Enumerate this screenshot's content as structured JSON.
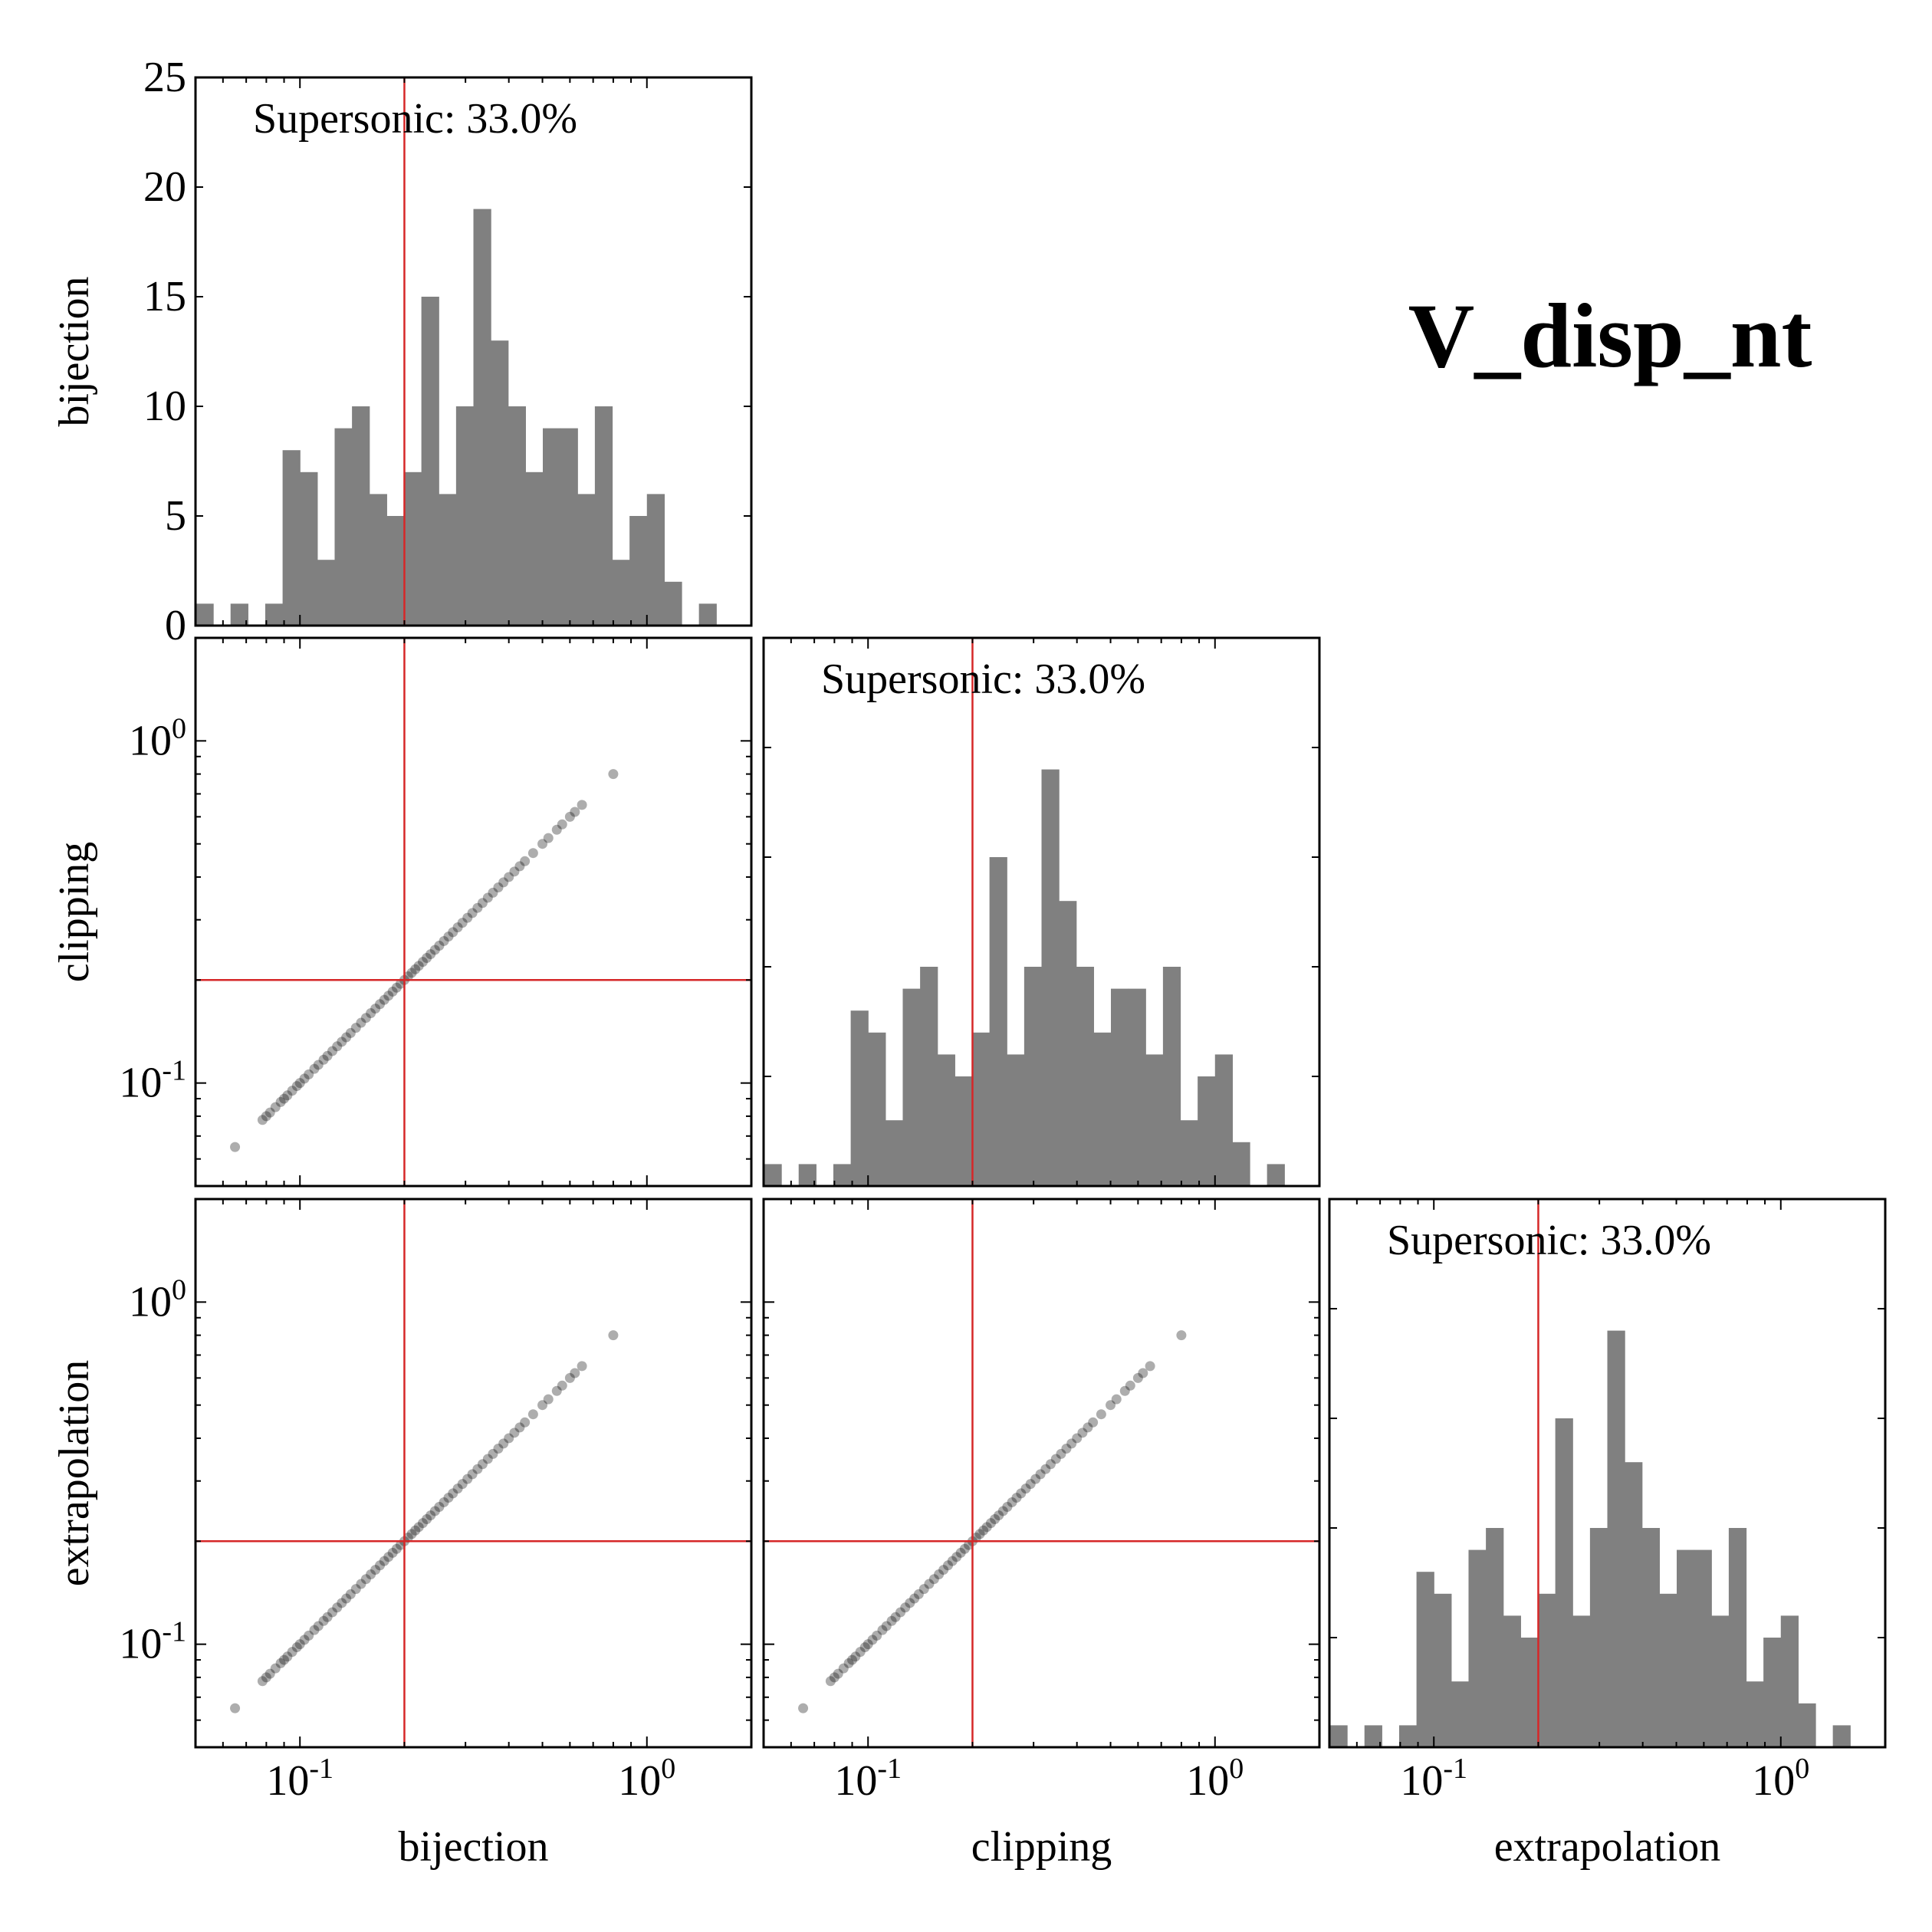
{
  "figure_title": "V_disp_nt",
  "chart_data": {
    "type": "corner",
    "variables": [
      "bijection",
      "clipping",
      "extrapolation"
    ],
    "scale": "log",
    "axis_range": [
      0.05,
      2.0
    ],
    "tick_labels": [
      {
        "base": "10",
        "exp": "-1",
        "value": 0.1
      },
      {
        "base": "10",
        "exp": "0",
        "value": 1.0
      }
    ],
    "threshold": 0.2,
    "threshold_color": "#d62728",
    "hist_color": "#808080",
    "scatter_color": "#000000",
    "hist_y_ticks": [
      0,
      5,
      10,
      15,
      20,
      25
    ],
    "hist_ylim": [
      0,
      25
    ],
    "annotation": "Supersonic: 33.0%",
    "histogram": {
      "bin_edges_log10": [
        -1.301,
        -1.25,
        -1.2,
        -1.15,
        -1.1,
        -1.05,
        -1.0,
        -0.95,
        -0.9,
        -0.85,
        -0.8,
        -0.75,
        -0.7,
        -0.65,
        -0.6,
        -0.55,
        -0.5,
        -0.45,
        -0.4,
        -0.35,
        -0.3,
        -0.25,
        -0.2,
        -0.15,
        -0.1,
        -0.05,
        0.0,
        0.05,
        0.1,
        0.15,
        0.2,
        0.25,
        0.3
      ],
      "counts": [
        1,
        0,
        1,
        0,
        1,
        8,
        7,
        3,
        9,
        10,
        6,
        5,
        7,
        15,
        6,
        10,
        19,
        13,
        10,
        7,
        9,
        9,
        6,
        10,
        3,
        5,
        6,
        2,
        0,
        1,
        0,
        0
      ]
    },
    "scatter_points": [
      0.065,
      0.078,
      0.08,
      0.082,
      0.085,
      0.088,
      0.09,
      0.092,
      0.095,
      0.098,
      0.1,
      0.103,
      0.106,
      0.11,
      0.113,
      0.117,
      0.12,
      0.124,
      0.128,
      0.132,
      0.136,
      0.14,
      0.145,
      0.15,
      0.155,
      0.16,
      0.165,
      0.17,
      0.175,
      0.18,
      0.185,
      0.19,
      0.195,
      0.2,
      0.205,
      0.21,
      0.215,
      0.22,
      0.226,
      0.232,
      0.238,
      0.245,
      0.252,
      0.26,
      0.268,
      0.276,
      0.285,
      0.294,
      0.304,
      0.314,
      0.325,
      0.336,
      0.348,
      0.36,
      0.373,
      0.386,
      0.4,
      0.415,
      0.43,
      0.445,
      0.47,
      0.5,
      0.52,
      0.55,
      0.57,
      0.6,
      0.62,
      0.65,
      0.8
    ]
  }
}
